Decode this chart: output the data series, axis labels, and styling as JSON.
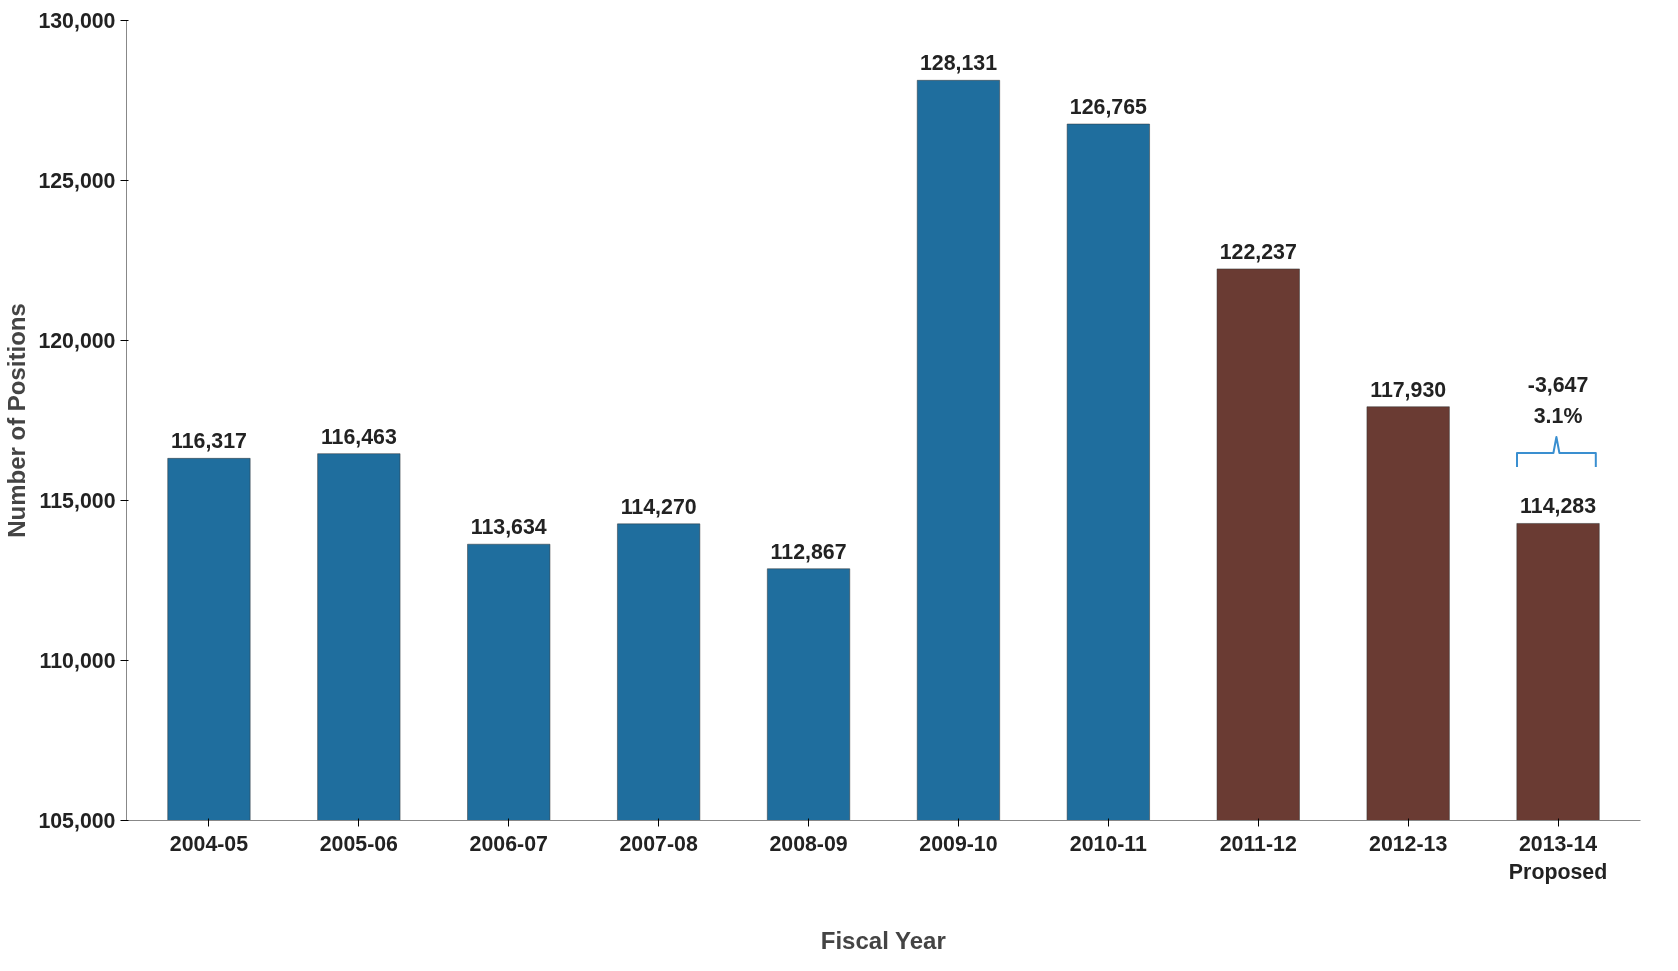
{
  "chart_data": {
    "type": "bar",
    "xlabel": "Fiscal Year",
    "ylabel": "Number of Positions",
    "categories": [
      "2004-05",
      "2005-06",
      "2006-07",
      "2007-08",
      "2008-09",
      "2009-10",
      "2010-11",
      "2011-12",
      "2012-13",
      "2013-14\nProposed"
    ],
    "values": [
      116317,
      116463,
      113634,
      114270,
      112867,
      128131,
      126765,
      122237,
      117930,
      114283
    ],
    "colors": [
      "#1f6e9e",
      "#1f6e9e",
      "#1f6e9e",
      "#1f6e9e",
      "#1f6e9e",
      "#1f6e9e",
      "#1f6e9e",
      "#6a3b33",
      "#6a3b33",
      "#6a3b33"
    ],
    "value_labels": [
      "116,317",
      "116,463",
      "113,634",
      "114,270",
      "112,867",
      "128,131",
      "126,765",
      "122,237",
      "117,930",
      "114,283"
    ],
    "ylim": [
      105000,
      130000
    ],
    "yticks": [
      {
        "value": 105000,
        "label": "105,000"
      },
      {
        "value": 110000,
        "label": "110,000"
      },
      {
        "value": 115000,
        "label": "115,000"
      },
      {
        "value": 120000,
        "label": "120,000"
      },
      {
        "value": 125000,
        "label": "125,000"
      },
      {
        "value": 130000,
        "label": "130,000"
      }
    ],
    "annotations": [
      "-3,647\n3.1%"
    ],
    "grid": false
  }
}
